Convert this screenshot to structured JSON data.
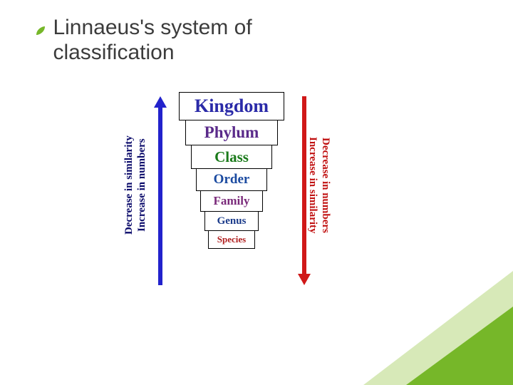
{
  "title": "Linnaeus's system of classification",
  "title_color": "#3c3c3c",
  "title_fontsize": 30,
  "bullet": {
    "color": "#76b729",
    "size": 10
  },
  "decor": {
    "bottom_right": {
      "color": "#76b729",
      "opacity": 0.9
    },
    "bottom_right_pale": {
      "color": "#d7e9b8"
    }
  },
  "funnel": {
    "border_color": "#000000",
    "levels": [
      {
        "label": "Kingdom",
        "width": 148,
        "height": 40,
        "fontsize": 26,
        "color": "#2a2aa8"
      },
      {
        "label": "Phylum",
        "width": 130,
        "height": 36,
        "fontsize": 23,
        "color": "#5a2a8a"
      },
      {
        "label": "Class",
        "width": 114,
        "height": 34,
        "fontsize": 21,
        "color": "#1a7a1a"
      },
      {
        "label": "Order",
        "width": 100,
        "height": 32,
        "fontsize": 19,
        "color": "#1a4aa0"
      },
      {
        "label": "Family",
        "width": 88,
        "height": 30,
        "fontsize": 17,
        "color": "#7a2a7a"
      },
      {
        "label": "Genus",
        "width": 76,
        "height": 28,
        "fontsize": 15,
        "color": "#1a3a8a"
      },
      {
        "label": "Species",
        "width": 66,
        "height": 26,
        "fontsize": 13,
        "color": "#b02020"
      }
    ]
  },
  "left_arrow": {
    "color": "#2222cc",
    "direction": "up",
    "line_width": 6
  },
  "right_arrow": {
    "color": "#d01818",
    "direction": "down",
    "line_width": 6
  },
  "left_labels": {
    "line1": "Decrease in similarity",
    "line2": "Increase in numbers",
    "color": "#0a0a6a",
    "fontsize": 15
  },
  "right_labels": {
    "line1": "Increase in similarity",
    "line2": "Decrease in numbers",
    "color": "#c01010",
    "fontsize": 15
  }
}
